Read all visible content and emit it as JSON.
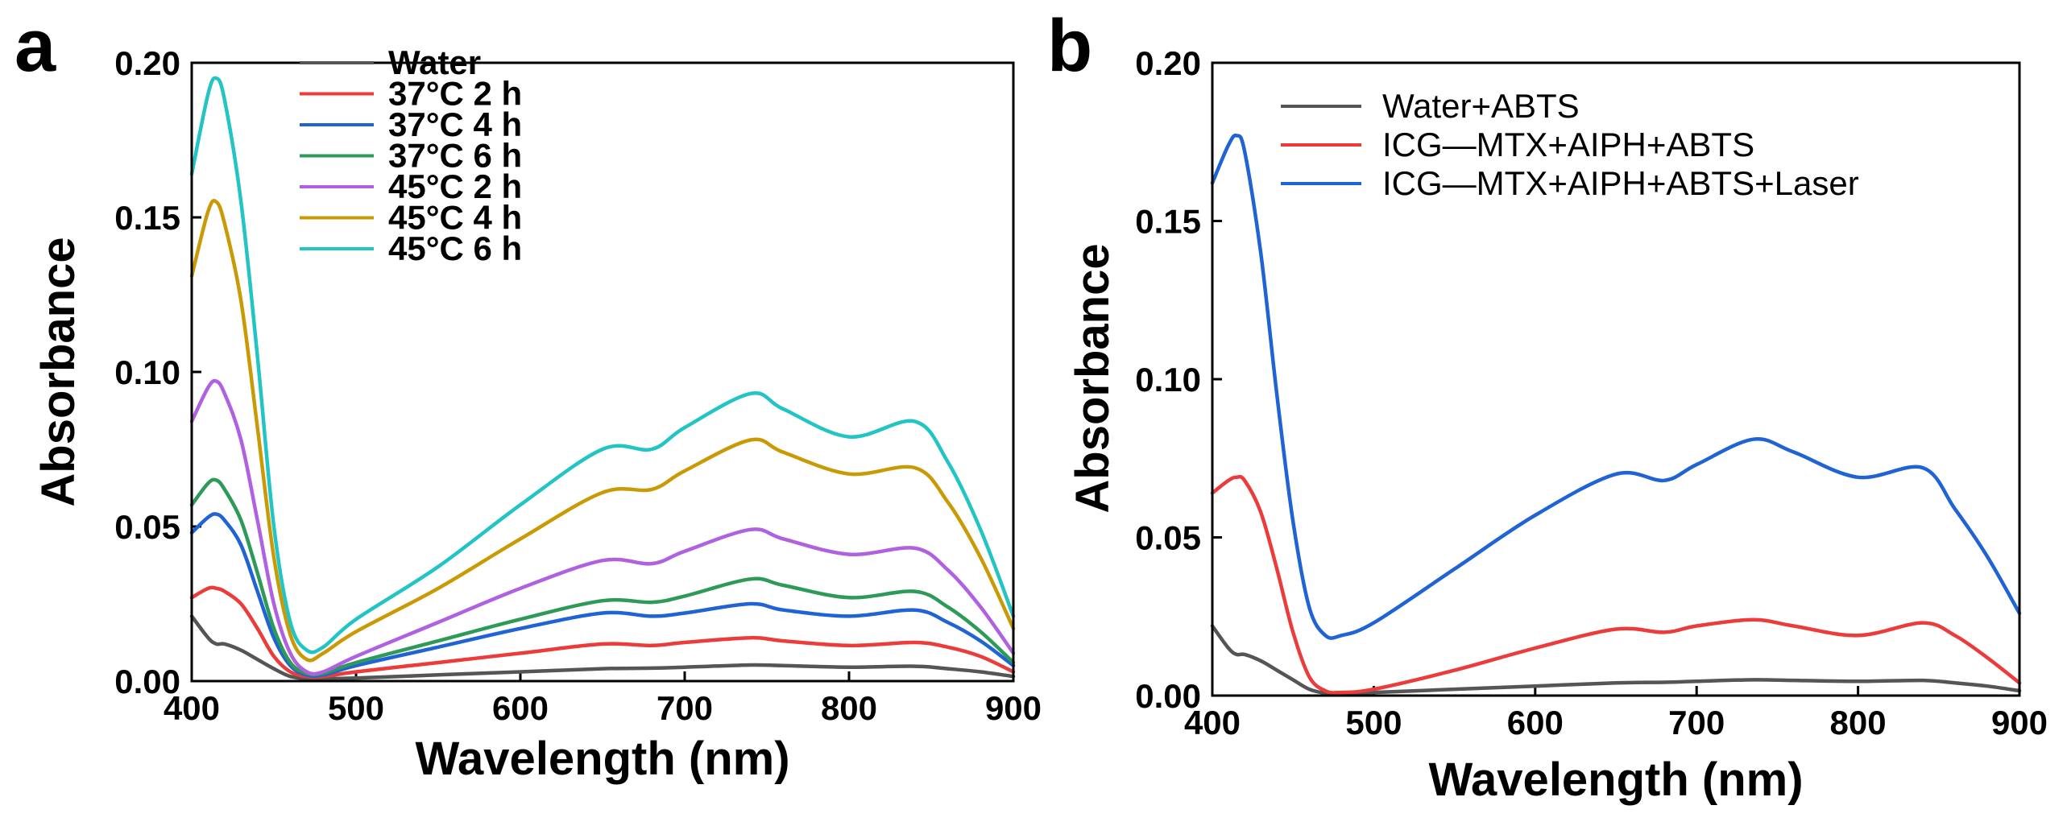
{
  "chart_data": [
    {
      "type": "line",
      "panel_label": "a",
      "xlabel": "Wavelength (nm)",
      "ylabel": "Absorbance",
      "xlim": [
        400,
        900
      ],
      "ylim": [
        0,
        0.2
      ],
      "xticks": [
        400,
        500,
        600,
        700,
        800,
        900
      ],
      "yticks": [
        0.0,
        0.05,
        0.1,
        0.15,
        0.2
      ],
      "ytick_labels": [
        "0.00",
        "0.05",
        "0.10",
        "0.15",
        "0.20"
      ],
      "legend_position": "top-center",
      "x": [
        400,
        410,
        415,
        420,
        430,
        440,
        450,
        460,
        470,
        480,
        500,
        550,
        600,
        650,
        680,
        700,
        740,
        760,
        800,
        840,
        860,
        880,
        900
      ],
      "series": [
        {
          "name": "Water",
          "color": "#555555",
          "values": [
            0.021,
            0.014,
            0.012,
            0.012,
            0.01,
            0.007,
            0.004,
            0.0015,
            0.0008,
            0.0008,
            0.001,
            0.002,
            0.003,
            0.004,
            0.0042,
            0.0045,
            0.0052,
            0.005,
            0.0045,
            0.0048,
            0.004,
            0.003,
            0.0015
          ]
        },
        {
          "name": "37°C 2 h",
          "color": "#ec3b3b",
          "values": [
            0.027,
            0.03,
            0.03,
            0.029,
            0.025,
            0.017,
            0.008,
            0.003,
            0.0015,
            0.0015,
            0.003,
            0.006,
            0.009,
            0.012,
            0.0115,
            0.0125,
            0.014,
            0.013,
            0.0115,
            0.0125,
            0.011,
            0.008,
            0.003
          ]
        },
        {
          "name": "37°C 4 h",
          "color": "#1f63d4",
          "values": [
            0.048,
            0.053,
            0.054,
            0.052,
            0.044,
            0.029,
            0.014,
            0.005,
            0.002,
            0.002,
            0.005,
            0.011,
            0.017,
            0.022,
            0.021,
            0.022,
            0.025,
            0.023,
            0.021,
            0.023,
            0.019,
            0.013,
            0.005
          ]
        },
        {
          "name": "37°C 6 h",
          "color": "#2e9a58",
          "values": [
            0.057,
            0.064,
            0.065,
            0.062,
            0.052,
            0.035,
            0.017,
            0.006,
            0.0025,
            0.0025,
            0.006,
            0.013,
            0.02,
            0.026,
            0.0255,
            0.0275,
            0.033,
            0.031,
            0.027,
            0.029,
            0.024,
            0.016,
            0.006
          ]
        },
        {
          "name": "45°C 2 h",
          "color": "#b061e0",
          "values": [
            0.084,
            0.095,
            0.097,
            0.093,
            0.078,
            0.052,
            0.025,
            0.009,
            0.003,
            0.003,
            0.008,
            0.019,
            0.03,
            0.039,
            0.038,
            0.042,
            0.049,
            0.046,
            0.041,
            0.043,
            0.036,
            0.024,
            0.009
          ]
        },
        {
          "name": "45°C 4 h",
          "color": "#c99a06",
          "values": [
            0.131,
            0.152,
            0.155,
            0.148,
            0.123,
            0.082,
            0.04,
            0.015,
            0.007,
            0.009,
            0.016,
            0.03,
            0.046,
            0.061,
            0.062,
            0.068,
            0.078,
            0.074,
            0.067,
            0.069,
            0.058,
            0.04,
            0.017
          ]
        },
        {
          "name": "45°C 6 h",
          "color": "#22c4c4",
          "values": [
            0.164,
            0.19,
            0.195,
            0.188,
            0.155,
            0.105,
            0.05,
            0.019,
            0.01,
            0.011,
            0.02,
            0.037,
            0.057,
            0.075,
            0.075,
            0.082,
            0.093,
            0.088,
            0.079,
            0.084,
            0.071,
            0.049,
            0.021
          ]
        }
      ]
    },
    {
      "type": "line",
      "panel_label": "b",
      "xlabel": "Wavelength (nm)",
      "ylabel": "Absorbance",
      "xlim": [
        400,
        900
      ],
      "ylim": [
        0,
        0.2
      ],
      "xticks": [
        400,
        500,
        600,
        700,
        800,
        900
      ],
      "yticks": [
        0.0,
        0.05,
        0.1,
        0.15,
        0.2
      ],
      "ytick_labels": [
        "0.00",
        "0.05",
        "0.10",
        "0.15",
        "0.20"
      ],
      "legend_position": "top-right",
      "x": [
        400,
        410,
        415,
        420,
        430,
        440,
        450,
        460,
        470,
        480,
        500,
        550,
        600,
        650,
        680,
        700,
        735,
        760,
        800,
        840,
        860,
        880,
        900
      ],
      "series": [
        {
          "name": "Water+ABTS",
          "color": "#555555",
          "values": [
            0.022,
            0.015,
            0.013,
            0.013,
            0.011,
            0.008,
            0.005,
            0.002,
            0.0008,
            0.0008,
            0.001,
            0.002,
            0.003,
            0.004,
            0.0042,
            0.0045,
            0.005,
            0.0048,
            0.0045,
            0.0048,
            0.004,
            0.003,
            0.0015
          ]
        },
        {
          "name": "ICG—MTX+AIPH+ABTS",
          "color": "#ec3b3b",
          "values": [
            0.064,
            0.068,
            0.069,
            0.068,
            0.058,
            0.04,
            0.02,
            0.006,
            0.0015,
            0.001,
            0.002,
            0.008,
            0.015,
            0.021,
            0.02,
            0.022,
            0.024,
            0.022,
            0.019,
            0.023,
            0.019,
            0.012,
            0.004
          ]
        },
        {
          "name": "ICG—MTX+AIPH+ABTS+Laser",
          "color": "#1f63d4",
          "values": [
            0.162,
            0.174,
            0.177,
            0.172,
            0.14,
            0.095,
            0.055,
            0.028,
            0.019,
            0.019,
            0.023,
            0.04,
            0.057,
            0.07,
            0.068,
            0.073,
            0.081,
            0.077,
            0.069,
            0.072,
            0.059,
            0.044,
            0.026
          ]
        }
      ]
    }
  ]
}
